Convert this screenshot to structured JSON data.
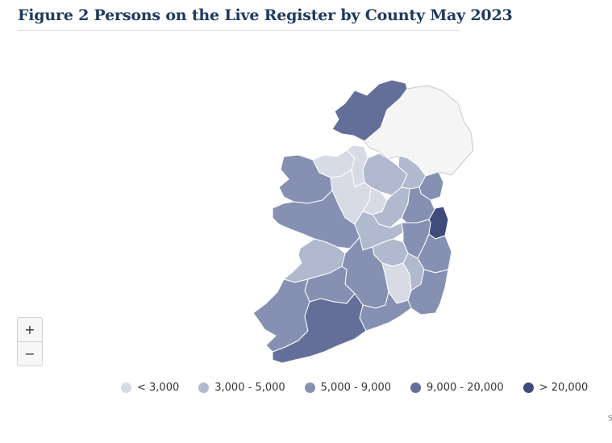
{
  "title": "Figure 2 Persons on the Live Register by County May 2023",
  "zoom": {
    "in_label": "+",
    "out_label": "−"
  },
  "legend": [
    {
      "label": "< 3,000",
      "color": "#d7dbe6"
    },
    {
      "label": "3,000 - 5,000",
      "color": "#b1b9cf"
    },
    {
      "label": "5,000 - 9,000",
      "color": "#8690b2"
    },
    {
      "label": "9,000 - 20,000",
      "color": "#646f99"
    },
    {
      "label": "> 20,000",
      "color": "#3f4c7b"
    }
  ],
  "northern_ireland_color": "#f5f5f5",
  "counties": [
    {
      "name": "Donegal",
      "class": 3
    },
    {
      "name": "Sligo",
      "class": 0
    },
    {
      "name": "Leitrim",
      "class": 0
    },
    {
      "name": "Cavan",
      "class": 1
    },
    {
      "name": "Monaghan",
      "class": 1
    },
    {
      "name": "Louth",
      "class": 2
    },
    {
      "name": "Mayo",
      "class": 2
    },
    {
      "name": "Roscommon",
      "class": 0
    },
    {
      "name": "Longford",
      "class": 0
    },
    {
      "name": "Westmeath",
      "class": 1
    },
    {
      "name": "Meath",
      "class": 2
    },
    {
      "name": "Dublin",
      "class": 4
    },
    {
      "name": "Galway",
      "class": 2
    },
    {
      "name": "Offaly",
      "class": 1
    },
    {
      "name": "Kildare",
      "class": 2
    },
    {
      "name": "Wicklow",
      "class": 2
    },
    {
      "name": "Laois",
      "class": 1
    },
    {
      "name": "Clare",
      "class": 1
    },
    {
      "name": "Tipperary",
      "class": 2
    },
    {
      "name": "Kilkenny",
      "class": 0
    },
    {
      "name": "Carlow",
      "class": 1
    },
    {
      "name": "Wexford",
      "class": 2
    },
    {
      "name": "Limerick",
      "class": 2
    },
    {
      "name": "Waterford",
      "class": 2
    },
    {
      "name": "Kerry",
      "class": 2
    },
    {
      "name": "Cork",
      "class": 3
    }
  ],
  "corner_mark": "S"
}
